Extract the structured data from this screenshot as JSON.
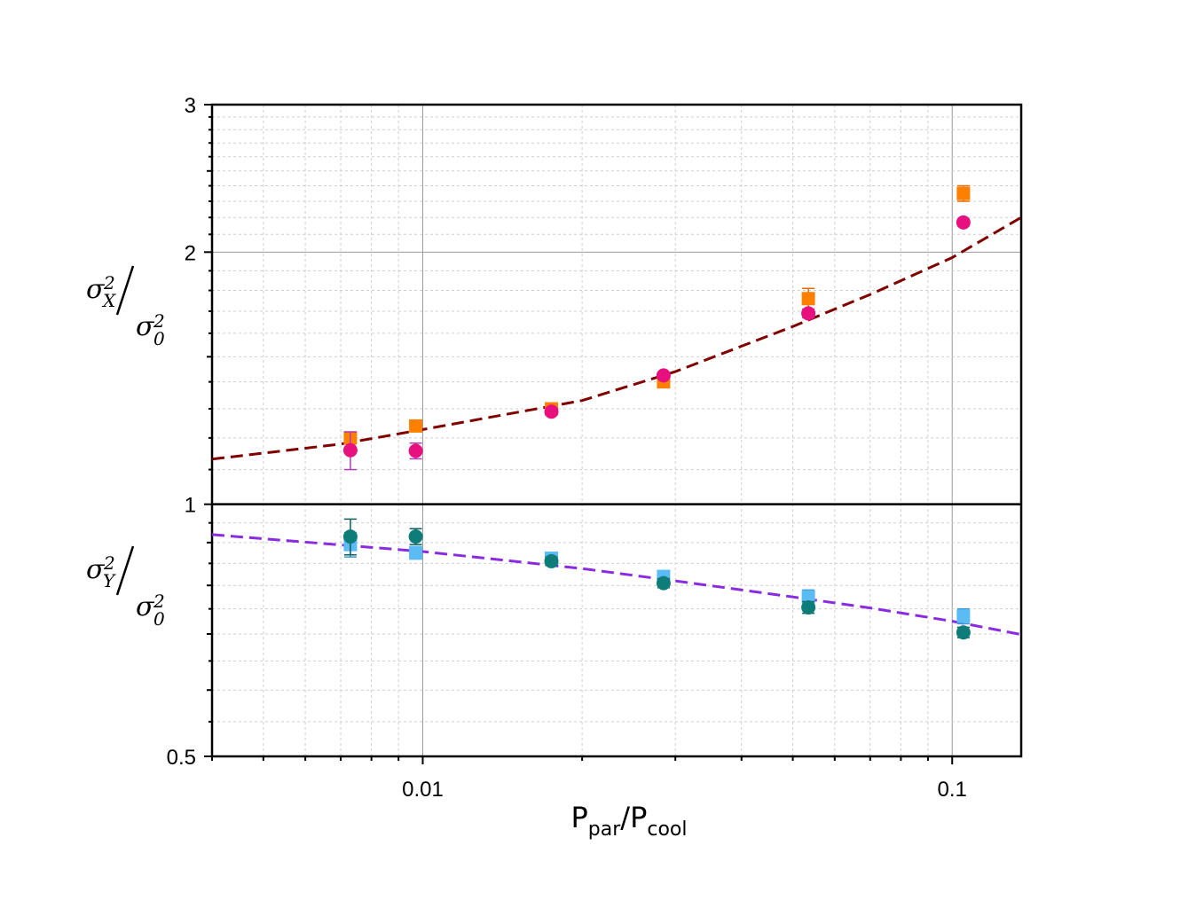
{
  "chart_data": {
    "type": "scatter",
    "title": "",
    "x_scale": "log",
    "y_scale": "log",
    "xlim": [
      0.004,
      0.135
    ],
    "ylim": [
      0.5,
      3
    ],
    "grid": true,
    "x_ticks": [
      {
        "value": 0.01,
        "label": "0.01"
      },
      {
        "value": 0.1,
        "label": "0.1"
      }
    ],
    "y_ticks": [
      {
        "value": 0.5,
        "label": "0.5"
      },
      {
        "value": 1,
        "label": "1"
      },
      {
        "value": 2,
        "label": "2"
      },
      {
        "value": 3,
        "label": "3"
      }
    ],
    "xlabel": {
      "base1": "P",
      "sub1": "par",
      "slash": "/",
      "base2": "P",
      "sub2": "cool"
    },
    "ylabel_top": {
      "num_sym": "σ",
      "num_sub": "X",
      "num_sup": "2",
      "den_sym": "σ",
      "den_sub": "0",
      "den_sup": "2"
    },
    "ylabel_bottom": {
      "num_sym": "σ",
      "num_sub": "Y",
      "num_sup": "2",
      "den_sym": "σ",
      "den_sub": "0",
      "den_sup": "2"
    },
    "divider_y": 1,
    "series": [
      {
        "marker": "square",
        "color": "#ff8000",
        "err_color": "#e06a00",
        "points": [
          {
            "x": 0.0073,
            "y": 1.2,
            "err": 0.02
          },
          {
            "x": 0.0097,
            "y": 1.24,
            "err": 0.015
          },
          {
            "x": 0.0175,
            "y": 1.3,
            "err": 0.01
          },
          {
            "x": 0.0285,
            "y": 1.4,
            "err": 0.01
          },
          {
            "x": 0.0535,
            "y": 1.76,
            "err": 0.05
          },
          {
            "x": 0.105,
            "y": 2.35,
            "err": 0.05
          }
        ]
      },
      {
        "marker": "circle",
        "color": "#e8107f",
        "err_color": "#b03cb5",
        "points": [
          {
            "x": 0.0073,
            "y": 1.16,
            "err": 0.06
          },
          {
            "x": 0.0097,
            "y": 1.158,
            "err": 0.025
          },
          {
            "x": 0.0175,
            "y": 1.29,
            "err": 0.01
          },
          {
            "x": 0.0285,
            "y": 1.425,
            "err": 0.01
          },
          {
            "x": 0.0535,
            "y": 1.69,
            "err": 0.02
          },
          {
            "x": 0.105,
            "y": 2.17,
            "err": 0.02
          }
        ]
      },
      {
        "marker": "square",
        "color": "#5bbcf5",
        "err_color": "#3a9ad8",
        "points": [
          {
            "x": 0.0073,
            "y": 0.895,
            "err": 0.03
          },
          {
            "x": 0.0097,
            "y": 0.875,
            "err": 0.015
          },
          {
            "x": 0.0175,
            "y": 0.862,
            "err": 0.01
          },
          {
            "x": 0.0285,
            "y": 0.82,
            "err": 0.01
          },
          {
            "x": 0.0535,
            "y": 0.775,
            "err": 0.015
          },
          {
            "x": 0.105,
            "y": 0.735,
            "err": 0.015
          }
        ]
      },
      {
        "marker": "circle",
        "color": "#0e7d7a",
        "err_color": "#0a5f5d",
        "points": [
          {
            "x": 0.0073,
            "y": 0.915,
            "err": 0.045
          },
          {
            "x": 0.0097,
            "y": 0.915,
            "err": 0.02
          },
          {
            "x": 0.0175,
            "y": 0.855,
            "err": 0.01
          },
          {
            "x": 0.0285,
            "y": 0.805,
            "err": 0.01
          },
          {
            "x": 0.0535,
            "y": 0.753,
            "err": 0.012
          },
          {
            "x": 0.105,
            "y": 0.703,
            "err": 0.01
          }
        ]
      }
    ],
    "fits": [
      {
        "color": "#800000",
        "points": [
          [
            0.004,
            1.132
          ],
          [
            0.007,
            1.18
          ],
          [
            0.01,
            1.228
          ],
          [
            0.02,
            1.33
          ],
          [
            0.03,
            1.44
          ],
          [
            0.05,
            1.63
          ],
          [
            0.07,
            1.78
          ],
          [
            0.1,
            1.97
          ],
          [
            0.135,
            2.2
          ]
        ]
      },
      {
        "color": "#8a2be2",
        "points": [
          [
            0.004,
            0.92
          ],
          [
            0.01,
            0.878
          ],
          [
            0.02,
            0.838
          ],
          [
            0.03,
            0.81
          ],
          [
            0.05,
            0.775
          ],
          [
            0.07,
            0.752
          ],
          [
            0.1,
            0.725
          ],
          [
            0.135,
            0.699
          ]
        ]
      }
    ]
  }
}
